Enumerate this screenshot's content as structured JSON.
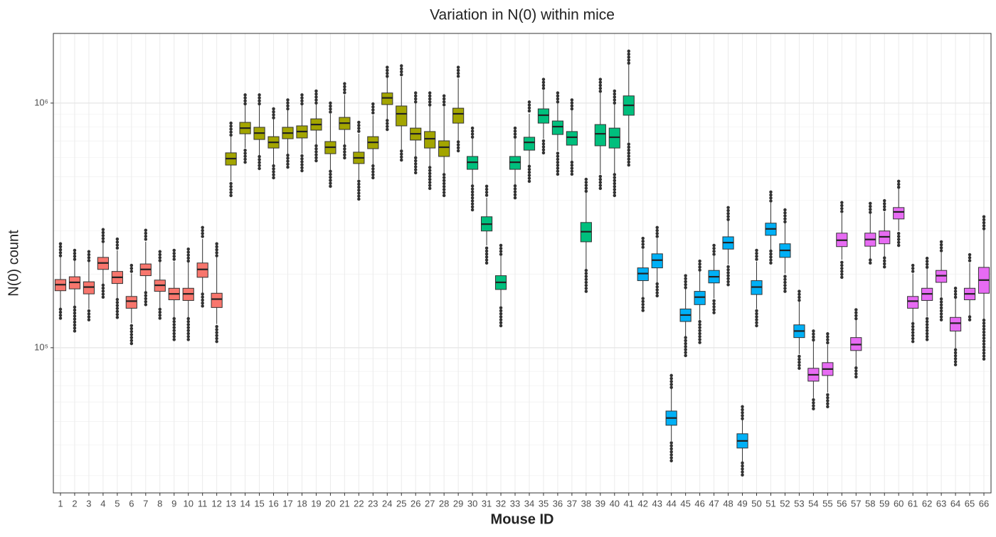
{
  "chart_data": {
    "type": "boxplot",
    "title": "Variation in N(0) within mice",
    "x_label": "Mouse ID",
    "y_label": "N(0) count",
    "log_scale": true,
    "grid": true,
    "ylim": [
      25500,
      1926000
    ],
    "yticks": [
      {
        "value": 100000,
        "label": "10⁵"
      },
      {
        "value": 1000000,
        "label": "10⁶"
      }
    ],
    "minor_yticks": [
      30000,
      40000,
      50000,
      60000,
      70000,
      80000,
      90000,
      200000,
      300000,
      400000,
      500000,
      600000,
      700000,
      800000,
      900000
    ],
    "categories": [
      "1",
      "2",
      "3",
      "4",
      "5",
      "6",
      "7",
      "8",
      "9",
      "10",
      "11",
      "12",
      "13",
      "14",
      "15",
      "16",
      "17",
      "18",
      "19",
      "20",
      "21",
      "22",
      "23",
      "24",
      "25",
      "26",
      "27",
      "28",
      "29",
      "30",
      "31",
      "32",
      "33",
      "34",
      "35",
      "36",
      "37",
      "38",
      "39",
      "40",
      "41",
      "42",
      "43",
      "44",
      "45",
      "46",
      "47",
      "48",
      "49",
      "50",
      "51",
      "52",
      "53",
      "54",
      "55",
      "56",
      "57",
      "58",
      "59",
      "60",
      "61",
      "62",
      "63",
      "64",
      "65",
      "66"
    ],
    "colors": [
      "#F8766D",
      "#F8766D",
      "#F8766D",
      "#F8766D",
      "#F8766D",
      "#F8766D",
      "#F8766D",
      "#F8766D",
      "#F8766D",
      "#F8766D",
      "#F8766D",
      "#F8766D",
      "#A3A500",
      "#A3A500",
      "#A3A500",
      "#A3A500",
      "#A3A500",
      "#A3A500",
      "#A3A500",
      "#A3A500",
      "#A3A500",
      "#A3A500",
      "#A3A500",
      "#A3A500",
      "#A3A500",
      "#A3A500",
      "#A3A500",
      "#A3A500",
      "#A3A500",
      "#00BF7D",
      "#00BF7D",
      "#00BF7D",
      "#00BF7D",
      "#00BF7D",
      "#00BF7D",
      "#00BF7D",
      "#00BF7D",
      "#00BF7D",
      "#00BF7D",
      "#00BF7D",
      "#00BF7D",
      "#00B0F6",
      "#00B0F6",
      "#00B0F6",
      "#00B0F6",
      "#00B0F6",
      "#00B0F6",
      "#00B0F6",
      "#00B0F6",
      "#00B0F6",
      "#00B0F6",
      "#00B0F6",
      "#00B0F6",
      "#E76BF3",
      "#E76BF3",
      "#E76BF3",
      "#E76BF3",
      "#E76BF3",
      "#E76BF3",
      "#E76BF3",
      "#E76BF3",
      "#E76BF3",
      "#E76BF3",
      "#E76BF3",
      "#E76BF3",
      "#E76BF3"
    ],
    "outlier_max": [
      266000,
      250000,
      247000,
      304000,
      278000,
      217000,
      302000,
      247000,
      250000,
      253000,
      310000,
      266000,
      828000,
      1080000,
      1080000,
      947000,
      1030000,
      1080000,
      1120000,
      1000000,
      1200000,
      834000,
      992000,
      1400000,
      1420000,
      1100000,
      1100000,
      1070000,
      1400000,
      790000,
      457000,
      262000,
      790000,
      1010000,
      1250000,
      1100000,
      1030000,
      488000,
      1250000,
      1120000,
      1630000,
      280000,
      310000,
      77000,
      197000,
      226000,
      262000,
      374000,
      57400,
      250000,
      433000,
      366000,
      170000,
      117000,
      114000,
      392000,
      143000,
      389000,
      399000,
      479000,
      217000,
      232000,
      271000,
      175000,
      240000,
      343000
    ],
    "whisker_high": [
      237000,
      229000,
      225000,
      271000,
      250000,
      201000,
      271000,
      225000,
      225000,
      225000,
      278000,
      237000,
      739000,
      979000,
      979000,
      857000,
      935000,
      979000,
      1000000,
      904000,
      1080000,
      749000,
      892000,
      1280000,
      1280000,
      1000000,
      979000,
      966000,
      1260000,
      715000,
      410000,
      237000,
      715000,
      904000,
      1130000,
      1000000,
      935000,
      433000,
      1100000,
      1000000,
      1440000,
      253000,
      280000,
      68800,
      175000,
      205000,
      237000,
      331000,
      50900,
      225000,
      392000,
      327000,
      154000,
      106000,
      103000,
      354000,
      130000,
      354000,
      359000,
      448000,
      201000,
      210000,
      245000,
      159000,
      222000,
      306000
    ],
    "q3": [
      190000,
      195000,
      186000,
      234000,
      205000,
      162000,
      220000,
      189000,
      175000,
      175000,
      222000,
      167000,
      626000,
      834000,
      796000,
      729000,
      796000,
      807000,
      862000,
      696000,
      874000,
      630000,
      729000,
      1100000,
      973000,
      790000,
      765000,
      701000,
      953000,
      605000,
      343000,
      197000,
      605000,
      725000,
      947000,
      845000,
      765000,
      325000,
      817000,
      790000,
      1070000,
      212000,
      242000,
      55100,
      144000,
      170000,
      207000,
      284000,
      44500,
      188000,
      323000,
      266000,
      124000,
      82400,
      86900,
      294000,
      110000,
      294000,
      300000,
      374000,
      162000,
      175000,
      207000,
      133000,
      175000,
      213000
    ],
    "median": [
      181000,
      185000,
      177000,
      222000,
      194000,
      155000,
      209000,
      180000,
      166000,
      166000,
      209000,
      158000,
      593000,
      790000,
      754000,
      691000,
      754000,
      765000,
      817000,
      660000,
      828000,
      597000,
      691000,
      1050000,
      904000,
      749000,
      715000,
      660000,
      904000,
      573000,
      320000,
      185000,
      573000,
      691000,
      892000,
      801000,
      725000,
      298000,
      749000,
      725000,
      979000,
      201000,
      228000,
      51600,
      136000,
      161000,
      195000,
      269000,
      41600,
      177000,
      306000,
      250000,
      117000,
      77500,
      81800,
      275000,
      103000,
      277000,
      284000,
      359000,
      155000,
      166000,
      197000,
      126000,
      166000,
      189000
    ],
    "q1": [
      171000,
      174000,
      166000,
      209000,
      183000,
      145000,
      197000,
      170000,
      157000,
      156000,
      194000,
      146000,
      558000,
      749000,
      710000,
      655000,
      715000,
      720000,
      775000,
      621000,
      780000,
      566000,
      651000,
      986000,
      807000,
      706000,
      655000,
      605000,
      828000,
      536000,
      300000,
      173000,
      536000,
      642000,
      828000,
      744000,
      673000,
      271000,
      669000,
      655000,
      892000,
      188000,
      212000,
      48200,
      128000,
      150000,
      184000,
      253000,
      38900,
      165000,
      288000,
      234000,
      110000,
      73000,
      77000,
      259000,
      97400,
      260000,
      266000,
      336000,
      145000,
      156000,
      185000,
      117000,
      157000,
      167000
    ],
    "whisker_low": [
      145000,
      148000,
      144000,
      181000,
      159000,
      126000,
      170000,
      146000,
      132000,
      132000,
      167000,
      125000,
      479000,
      655000,
      613000,
      558000,
      617000,
      621000,
      669000,
      529000,
      669000,
      488000,
      558000,
      857000,
      647000,
      605000,
      547000,
      512000,
      701000,
      463000,
      262000,
      148000,
      463000,
      554000,
      715000,
      638000,
      573000,
      207000,
      512000,
      512000,
      691000,
      161000,
      184000,
      41600,
      111000,
      130000,
      159000,
      219000,
      34100,
      144000,
      250000,
      201000,
      94200,
      62200,
      65600,
      229000,
      84000,
      229000,
      234000,
      300000,
      126000,
      134000,
      161000,
      99300,
      134000,
      130000
    ],
    "outlier_min": [
      132000,
      117000,
      130000,
      161000,
      133000,
      104000,
      150000,
      132000,
      108000,
      108000,
      148000,
      106000,
      419000,
      573000,
      540000,
      495000,
      547000,
      529000,
      581000,
      457000,
      597000,
      405000,
      495000,
      780000,
      585000,
      519000,
      448000,
      419000,
      638000,
      366000,
      222000,
      123000,
      410000,
      479000,
      626000,
      512000,
      512000,
      170000,
      448000,
      419000,
      558000,
      142000,
      163000,
      34500,
      92900,
      105000,
      139000,
      181000,
      30200,
      123000,
      222000,
      170000,
      82400,
      56300,
      57400,
      194000,
      76000,
      222000,
      214000,
      262000,
      106000,
      108000,
      130000,
      85200,
      130000,
      89900
    ]
  }
}
